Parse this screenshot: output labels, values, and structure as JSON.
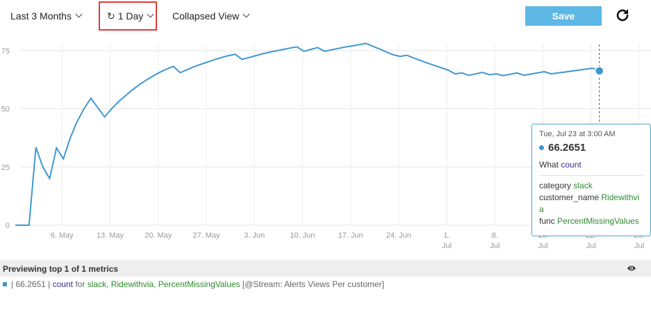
{
  "toolbar": {
    "range_label": "Last 3 Months",
    "interval_label": "1 Day",
    "view_label": "Collapsed View",
    "save_label": "Save"
  },
  "chart_data": {
    "type": "line",
    "x_tick_labels": [
      "6. May",
      "13. May",
      "20. May",
      "27. May",
      "3. Jun",
      "10. Jun",
      "17. Jun",
      "24. Jun",
      "1. Jul",
      "8. Jul",
      "15. Jul",
      "22. Jul",
      "29. Jul"
    ],
    "y_ticks": [
      0,
      25,
      50,
      75
    ],
    "ylim": [
      0,
      80
    ],
    "grid": true,
    "x_range": [
      "2024-04-29",
      "2024-07-29"
    ],
    "series": [
      {
        "color": "#3e97d1",
        "points": [
          [
            "2024-04-29",
            0
          ],
          [
            "2024-04-30",
            0
          ],
          [
            "2024-05-01",
            0
          ],
          [
            "2024-05-02",
            33.5
          ],
          [
            "2024-05-03",
            25
          ],
          [
            "2024-05-04",
            20
          ],
          [
            "2024-05-05",
            33.2
          ],
          [
            "2024-05-06",
            28.5
          ],
          [
            "2024-05-07",
            37.5
          ],
          [
            "2024-05-08",
            44.5
          ],
          [
            "2024-05-09",
            50
          ],
          [
            "2024-05-10",
            54.5
          ],
          [
            "2024-05-11",
            50.5
          ],
          [
            "2024-05-12",
            46.5
          ],
          [
            "2024-05-13",
            50
          ],
          [
            "2024-05-14",
            53
          ],
          [
            "2024-05-15",
            55.5
          ],
          [
            "2024-05-16",
            58
          ],
          [
            "2024-05-17",
            60.2
          ],
          [
            "2024-05-18",
            62.2
          ],
          [
            "2024-05-19",
            64
          ],
          [
            "2024-05-20",
            65.6
          ],
          [
            "2024-05-21",
            67
          ],
          [
            "2024-05-22",
            68.2
          ],
          [
            "2024-05-23",
            65.5
          ],
          [
            "2024-05-24",
            66.8
          ],
          [
            "2024-05-25",
            68
          ],
          [
            "2024-05-26",
            69.1
          ],
          [
            "2024-05-27",
            70.1
          ],
          [
            "2024-05-28",
            71.1
          ],
          [
            "2024-05-29",
            72
          ],
          [
            "2024-05-30",
            72.8
          ],
          [
            "2024-05-31",
            73.4
          ],
          [
            "2024-06-01",
            71.2
          ],
          [
            "2024-06-02",
            72
          ],
          [
            "2024-06-03",
            72.8
          ],
          [
            "2024-06-04",
            73.6
          ],
          [
            "2024-06-05",
            74.3
          ],
          [
            "2024-06-06",
            74.9
          ],
          [
            "2024-06-07",
            75.5
          ],
          [
            "2024-06-08",
            76.1
          ],
          [
            "2024-06-09",
            76.6
          ],
          [
            "2024-06-10",
            74.7
          ],
          [
            "2024-06-11",
            75.5
          ],
          [
            "2024-06-12",
            76.3
          ],
          [
            "2024-06-13",
            74.7
          ],
          [
            "2024-06-14",
            75.3
          ],
          [
            "2024-06-15",
            75.9
          ],
          [
            "2024-06-16",
            76.5
          ],
          [
            "2024-06-17",
            77
          ],
          [
            "2024-06-18",
            77.5
          ],
          [
            "2024-06-19",
            78.1
          ],
          [
            "2024-06-20",
            76.9
          ],
          [
            "2024-06-21",
            75.7
          ],
          [
            "2024-06-22",
            74.4
          ],
          [
            "2024-06-23",
            73.2
          ],
          [
            "2024-06-24",
            72.5
          ],
          [
            "2024-06-25",
            73
          ],
          [
            "2024-06-26",
            71.8
          ],
          [
            "2024-06-27",
            70.7
          ],
          [
            "2024-06-28",
            69.6
          ],
          [
            "2024-06-29",
            68.6
          ],
          [
            "2024-06-30",
            67.6
          ],
          [
            "2024-07-01",
            66.6
          ],
          [
            "2024-07-02",
            65
          ],
          [
            "2024-07-03",
            65.4
          ],
          [
            "2024-07-04",
            64.4
          ],
          [
            "2024-07-05",
            65
          ],
          [
            "2024-07-06",
            65.6
          ],
          [
            "2024-07-07",
            64.6
          ],
          [
            "2024-07-08",
            65
          ],
          [
            "2024-07-09",
            64.2
          ],
          [
            "2024-07-10",
            64.8
          ],
          [
            "2024-07-11",
            65.4
          ],
          [
            "2024-07-12",
            64.4
          ],
          [
            "2024-07-13",
            64.9
          ],
          [
            "2024-07-14",
            65.4
          ],
          [
            "2024-07-15",
            65.9
          ],
          [
            "2024-07-16",
            65
          ],
          [
            "2024-07-17",
            65.4
          ],
          [
            "2024-07-18",
            65.8
          ],
          [
            "2024-07-19",
            66.2
          ],
          [
            "2024-07-20",
            66.6
          ],
          [
            "2024-07-21",
            67
          ],
          [
            "2024-07-22",
            67.4
          ],
          [
            "2024-07-23",
            66.2651
          ]
        ]
      }
    ],
    "highlighted_point": {
      "x": "2024-07-23",
      "y": 66.2651
    }
  },
  "tooltip": {
    "time": "Tue, Jul 23 at 3:00 AM",
    "value": "66.2651",
    "what_key": "What",
    "what_val": "count",
    "category_key": "category",
    "category_val": "slack",
    "customer_key": "customer_name",
    "customer_val": "Ridewithvia",
    "func_key": "func",
    "func_val": "PercentMissingValues"
  },
  "preview": {
    "title": "Previewing top 1 of 1 metrics",
    "value": "| 66.2651 |",
    "metric": "count",
    "for_word": "for",
    "tags": "slack, Ridewithvia, PercentMissingValues",
    "stream": "[@Stream: Alerts Views Per customer]"
  },
  "colors": {
    "line": "#3e97d1",
    "save_button": "#5cb7e4",
    "highlight_border": "#e03a3a",
    "tag_green": "#2d8a2d"
  }
}
